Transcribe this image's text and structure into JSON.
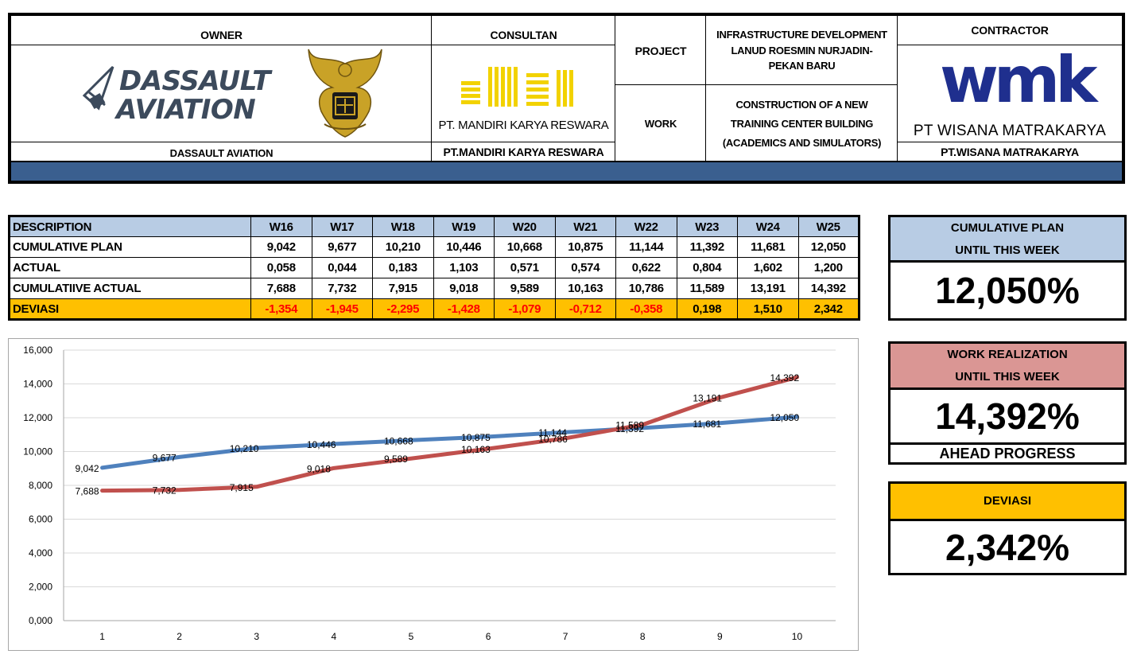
{
  "header": {
    "owner_label": "OWNER",
    "owner_logo_line1": "DASSAULT",
    "owner_logo_line2": "AVIATION",
    "owner_name": "DASSAULT AVIATION",
    "consultant_label": "CONSULTAN",
    "consultant_logo_text": "PT. MANDIRI KARYA RESWARA",
    "consultant_name": "PT.MANDIRI KARYA RESWARA",
    "project_label": "PROJECT",
    "project_line1": "INFRASTRUCTURE DEVELOPMENT",
    "project_line2": "LANUD ROESMIN NURJADIN-",
    "project_line3": "PEKAN BARU",
    "work_label": "WORK",
    "work_line1": "CONSTRUCTION OF A NEW",
    "work_line2": "TRAINING CENTER BUILDING",
    "work_line3": "(ACADEMICS AND SIMULATORS)",
    "contractor_label": "CONTRACTOR",
    "contractor_logo": "wmk",
    "contractor_logo_text": "PT WISANA MATRAKARYA",
    "contractor_name": "PT.WISANA MATRAKARYA",
    "band_color": "#3a5f8f"
  },
  "table": {
    "description_label": "DESCRIPTION",
    "weeks": [
      "W16",
      "W17",
      "W18",
      "W19",
      "W20",
      "W21",
      "W22",
      "W23",
      "W24",
      "W25"
    ],
    "rows": [
      {
        "label": "CUMULATIVE PLAN",
        "values": [
          "9,042",
          "9,677",
          "10,210",
          "10,446",
          "10,668",
          "10,875",
          "11,144",
          "11,392",
          "11,681",
          "12,050"
        ]
      },
      {
        "label": "ACTUAL",
        "values": [
          "0,058",
          "0,044",
          "0,183",
          "1,103",
          "0,571",
          "0,574",
          "0,622",
          "0,804",
          "1,602",
          "1,200"
        ]
      },
      {
        "label": "CUMULATIIVE ACTUAL",
        "values": [
          "7,688",
          "7,732",
          "7,915",
          "9,018",
          "9,589",
          "10,163",
          "10,786",
          "11,589",
          "13,191",
          "14,392"
        ]
      }
    ],
    "deviation": {
      "label": "DEVIASI",
      "values": [
        "-1,354",
        "-1,945",
        "-2,295",
        "-1,428",
        "-1,079",
        "-0,712",
        "-0,358",
        "0,198",
        "1,510",
        "2,342"
      ]
    }
  },
  "summary": {
    "plan_title_1": "CUMULATIVE PLAN",
    "plan_title_2": "UNTIL THIS WEEK",
    "plan_value": "12,050%",
    "real_title_1": "WORK REALIZATION",
    "real_title_2": "UNTIL THIS WEEK",
    "real_value": "14,392%",
    "real_status": "AHEAD PROGRESS",
    "dev_title": "DEVIASI",
    "dev_value": "2,342%",
    "colors": {
      "plan_bg": "#b8cce4",
      "real_bg": "#da9694",
      "dev_bg": "#ffc000"
    }
  },
  "chart_data": {
    "type": "line",
    "x": [
      1,
      2,
      3,
      4,
      5,
      6,
      7,
      8,
      9,
      10
    ],
    "ylim": [
      0,
      16
    ],
    "yticks": [
      0,
      2,
      4,
      6,
      8,
      10,
      12,
      14,
      16
    ],
    "ytick_labels": [
      "0,000",
      "2,000",
      "4,000",
      "6,000",
      "8,000",
      "10,000",
      "12,000",
      "14,000",
      "16,000"
    ],
    "grid": true,
    "legend": "none",
    "series": [
      {
        "color": "#4f81bd",
        "values": [
          9.042,
          9.677,
          10.21,
          10.446,
          10.668,
          10.875,
          11.144,
          11.392,
          11.681,
          12.05
        ],
        "labels": [
          "9,042",
          "9,677",
          "10,210",
          "10,446",
          "10,668",
          "10,875",
          "11,144",
          "11,392",
          "11,681",
          "12,050"
        ]
      },
      {
        "color": "#c0504d",
        "values": [
          7.688,
          7.732,
          7.915,
          9.018,
          9.589,
          10.163,
          10.786,
          11.589,
          13.191,
          14.392
        ],
        "labels": [
          "7,688",
          "7,732",
          "7,915",
          "9,018",
          "9,589",
          "10,163",
          "10,786",
          "11,589",
          "13,191",
          "14,392"
        ]
      }
    ]
  }
}
